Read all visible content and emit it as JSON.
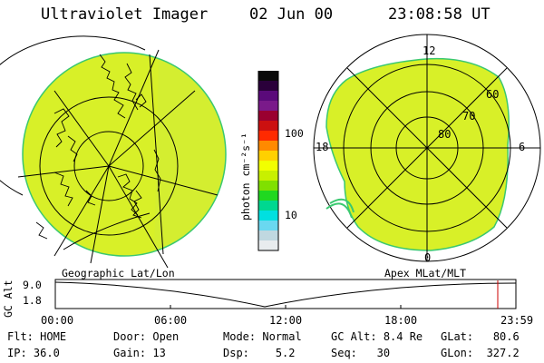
{
  "header": {
    "title": "Ultraviolet Imager",
    "date": "02 Jun 00",
    "time": "23:08:58 UT"
  },
  "left_panel": {
    "label": "Geographic Lat/Lon"
  },
  "right_panel": {
    "label": "Apex MLat/MLT",
    "mlt_labels": {
      "top": "12",
      "left": "18",
      "right": "6",
      "bottom": "0"
    },
    "lat_labels": [
      "60",
      "70",
      "80"
    ]
  },
  "colorbar": {
    "unit_label": "photon cm⁻²s⁻¹",
    "ticks": [
      "100",
      "10"
    ],
    "colors": [
      "#0a0a0a",
      "#2a003a",
      "#5a0a7a",
      "#7a1a8a",
      "#9a0030",
      "#cc1010",
      "#ff2a00",
      "#ff8a00",
      "#ffd000",
      "#f2ff00",
      "#c8f000",
      "#80e000",
      "#20d820",
      "#00d890",
      "#00e0e0",
      "#6ad8f0",
      "#c0d8e0",
      "#e8ecee"
    ]
  },
  "altitude_strip": {
    "axis_label": "GC Alt",
    "y_ticks": [
      "9.0",
      "1.8"
    ],
    "x_ticks": [
      "00:00",
      "06:00",
      "12:00",
      "18:00",
      "23:59"
    ],
    "marker_color": "#cc0000"
  },
  "info": {
    "flt_label": "Flt:",
    "flt_value": "HOME",
    "ip_label": "IP:",
    "ip_value": "36.0",
    "door_label": "Door:",
    "door_value": "Open",
    "gain_label": "Gain:",
    "gain_value": "13",
    "mode_label": "Mode:",
    "mode_value": "Normal",
    "dsp_label": "Dsp:",
    "dsp_value": "5.2",
    "gcalt_label": "GC Alt:",
    "gcalt_value": "8.4 Re",
    "seq_label": "Seq:",
    "seq_value": "30",
    "glat_label": "GLat:",
    "glat_value": "80.6",
    "glon_label": "GLon:",
    "glon_value": "327.2"
  },
  "colors": {
    "image_fill": "#d8f028",
    "image_edge": "#3ac870"
  }
}
